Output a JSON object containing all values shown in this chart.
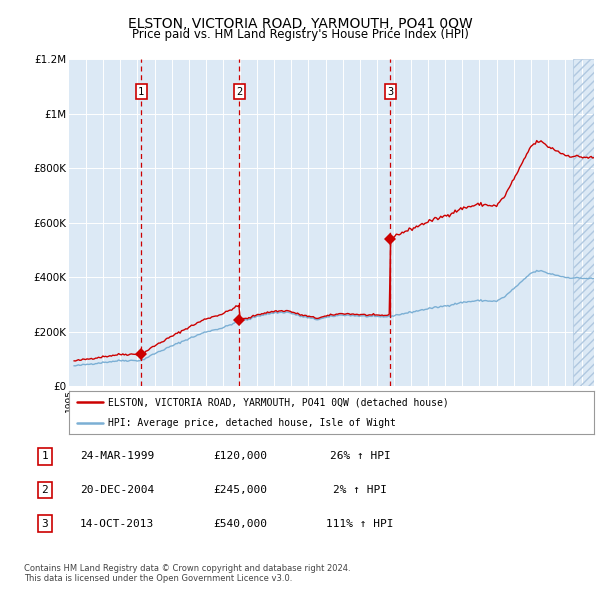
{
  "title": "ELSTON, VICTORIA ROAD, YARMOUTH, PO41 0QW",
  "subtitle": "Price paid vs. HM Land Registry's House Price Index (HPI)",
  "legend_line1": "ELSTON, VICTORIA ROAD, YARMOUTH, PO41 0QW (detached house)",
  "legend_line2": "HPI: Average price, detached house, Isle of Wight",
  "table": [
    {
      "num": "1",
      "date": "24-MAR-1999",
      "price": "£120,000",
      "hpi": "26% ↑ HPI"
    },
    {
      "num": "2",
      "date": "20-DEC-2004",
      "price": "£245,000",
      "hpi": "2% ↑ HPI"
    },
    {
      "num": "3",
      "date": "14-OCT-2013",
      "price": "£540,000",
      "hpi": "111% ↑ HPI"
    }
  ],
  "footer": "Contains HM Land Registry data © Crown copyright and database right 2024.\nThis data is licensed under the Open Government Licence v3.0.",
  "sale_dates": [
    1999.23,
    2004.97,
    2013.79
  ],
  "sale_prices": [
    120000,
    245000,
    540000
  ],
  "sale_nums": [
    "1",
    "2",
    "3"
  ],
  "ylim": [
    0,
    1200000
  ],
  "xlim_start": 1995.3,
  "xlim_end": 2025.7,
  "hpi_color": "#7bafd4",
  "sale_color": "#cc0000",
  "bg_color": "#dce9f5",
  "grid_color": "#ffffff",
  "vline_color": "#cc0000",
  "hatch_color": "#b0c8e0",
  "yticks": [
    0,
    200000,
    400000,
    600000,
    800000,
    1000000,
    1200000
  ],
  "ytick_labels": [
    "£0",
    "£200K",
    "£400K",
    "£600K",
    "£800K",
    "£1M",
    "£1.2M"
  ]
}
